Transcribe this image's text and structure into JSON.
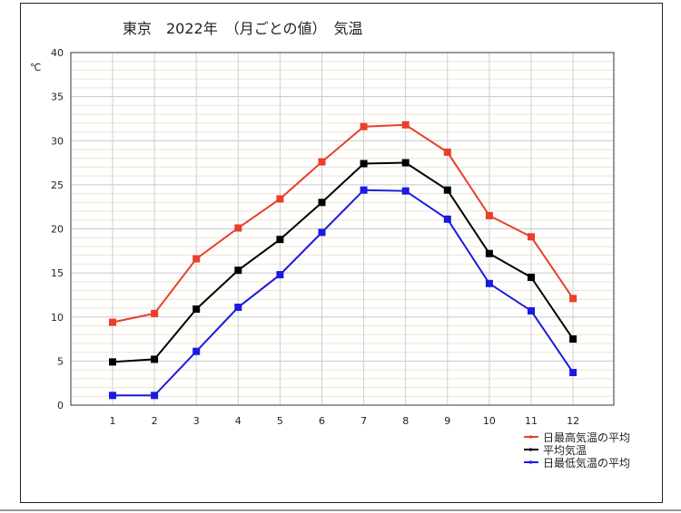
{
  "chart_data": {
    "type": "line",
    "title": "東京　2022年　（月ごとの値）　気温",
    "ylabel": "℃",
    "xlabel": "",
    "ylim": [
      0,
      40
    ],
    "yticks": [
      0,
      5,
      10,
      15,
      20,
      25,
      30,
      35,
      40
    ],
    "categories": [
      "1",
      "2",
      "3",
      "4",
      "5",
      "6",
      "7",
      "8",
      "9",
      "10",
      "11",
      "12"
    ],
    "grid": true,
    "legend_position": "bottom-right",
    "series": [
      {
        "name": "日最高気温の平均",
        "color": "#e8402a",
        "values": [
          9.4,
          10.4,
          16.6,
          20.1,
          23.4,
          27.6,
          31.6,
          31.8,
          28.7,
          21.5,
          19.1,
          12.1
        ]
      },
      {
        "name": "平均気温",
        "color": "#000000",
        "values": [
          4.9,
          5.2,
          10.9,
          15.3,
          18.8,
          23.0,
          27.4,
          27.5,
          24.4,
          17.2,
          14.5,
          7.5
        ]
      },
      {
        "name": "日最低気温の平均",
        "color": "#1a1ae0",
        "values": [
          1.1,
          1.1,
          6.1,
          11.1,
          14.8,
          19.6,
          24.4,
          24.3,
          21.1,
          13.8,
          10.7,
          3.7
        ]
      }
    ]
  }
}
